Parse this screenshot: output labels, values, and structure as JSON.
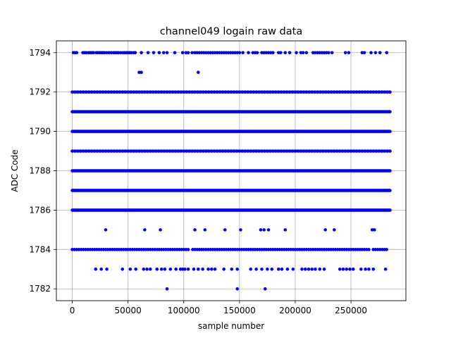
{
  "chart_data": {
    "type": "scatter",
    "title": "channel049 logain raw data",
    "xlabel": "sample number",
    "ylabel": "ADC Code",
    "xlim": [
      -14250,
      299250
    ],
    "ylim": [
      1781.4,
      1794.6
    ],
    "xticks": [
      0,
      50000,
      100000,
      150000,
      200000,
      250000
    ],
    "yticks": [
      1782,
      1784,
      1786,
      1788,
      1790,
      1792,
      1794
    ],
    "grid": true,
    "marker_color": "#0000ff",
    "x_max": 285000,
    "dense_levels": [
      1786,
      1787,
      1788,
      1790,
      1791
    ],
    "medium_levels": [
      1789,
      1792
    ],
    "sparse_levels": {
      "1784": [
        0,
        2000,
        4000,
        6000,
        8000,
        10000,
        12000,
        14000,
        16000,
        18000,
        20000,
        22000,
        24000,
        26000,
        28000,
        30000,
        32000,
        34000,
        36000,
        38000,
        40000,
        42000,
        44000,
        46000,
        48000,
        50000,
        52000,
        54000,
        56000,
        58000,
        60000,
        62000,
        64000,
        66000,
        68000,
        70000,
        72000,
        74000,
        76000,
        78000,
        80000,
        82000,
        84000,
        86000,
        88000,
        90000,
        92000,
        94000,
        96000,
        98000,
        100000,
        102000,
        104000,
        108000,
        110000,
        112000,
        114000,
        116000,
        118000,
        120000,
        122000,
        124000,
        126000,
        128000,
        130000,
        132000,
        134000,
        136000,
        138000,
        140000,
        142000,
        144000,
        146000,
        148000,
        150000,
        152000,
        154000,
        156000,
        158000,
        160000,
        162000,
        164000,
        166000,
        168000,
        170000,
        172000,
        174000,
        176000,
        178000,
        180000,
        182000,
        184000,
        186000,
        188000,
        190000,
        192000,
        194000,
        196000,
        198000,
        200000,
        202000,
        204000,
        206000,
        208000,
        210000,
        212000,
        214000,
        216000,
        218000,
        220000,
        222000,
        224000,
        226000,
        228000,
        230000,
        232000,
        234000,
        236000,
        238000,
        240000,
        242000,
        244000,
        246000,
        248000,
        250000,
        252000,
        254000,
        256000,
        258000,
        260000,
        262000,
        264000,
        266000,
        270000,
        272000,
        274000,
        276000,
        278000,
        280000,
        282000
      ],
      "1794": [
        1000,
        2500,
        4000,
        9500,
        11000,
        12500,
        14500,
        16000,
        17500,
        19000,
        21500,
        23000,
        24500,
        26000,
        27500,
        29000,
        31000,
        33000,
        35000,
        37000,
        38500,
        40000,
        41500,
        43500,
        45500,
        47000,
        48500,
        50000,
        51500,
        53000,
        55000,
        56500,
        62000,
        68000,
        73000,
        78000,
        82000,
        85000,
        92000,
        99000,
        102000,
        104000,
        107500,
        110000,
        112000,
        114000,
        116000,
        118000,
        120000,
        122000,
        124000,
        126000,
        128000,
        130000,
        132000,
        134000,
        136000,
        138000,
        140000,
        142000,
        144000,
        146000,
        148000,
        150000,
        153000,
        158000,
        162000,
        164000,
        166000,
        170000,
        172000,
        174000,
        176000,
        178000,
        180000,
        185000,
        187000,
        191000,
        195000,
        201000,
        205000,
        207000,
        210000,
        216000,
        218000,
        220000,
        222000,
        224000,
        226000,
        228000,
        230000,
        233000,
        245000,
        248000,
        260000,
        262000,
        268000,
        272000,
        276000,
        282000
      ],
      "1783": [
        21000,
        26000,
        31000,
        45000,
        52000,
        57000,
        64000,
        67000,
        70000,
        76000,
        80000,
        83000,
        88000,
        93000,
        97000,
        99000,
        101000,
        104000,
        109000,
        113000,
        117000,
        122000,
        125000,
        128000,
        136000,
        143000,
        148000,
        160000,
        165000,
        170000,
        175000,
        179000,
        185000,
        188000,
        193000,
        198000,
        206000,
        209000,
        212000,
        215000,
        218000,
        222000,
        226000,
        240000,
        243000,
        246000,
        249000,
        252000,
        259000,
        263000,
        266000,
        270000,
        281000
      ],
      "1785": [
        30000,
        65000,
        79000,
        110000,
        119000,
        137000,
        151000,
        169000,
        172000,
        176000,
        191000,
        227000,
        235000,
        269000,
        271000
      ],
      "1793": [
        60000,
        62000,
        113000
      ],
      "1782": [
        85000,
        148000,
        173000
      ]
    }
  }
}
